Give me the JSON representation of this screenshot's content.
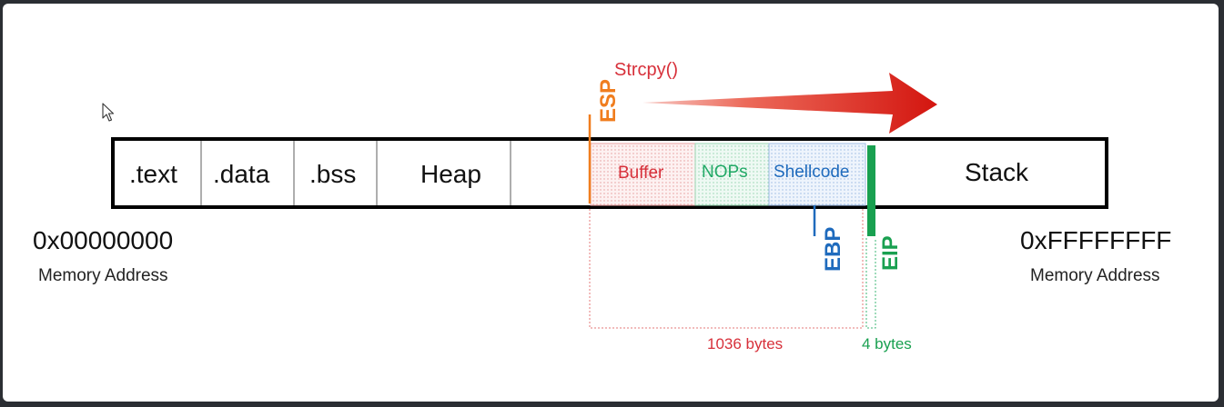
{
  "segments": {
    "text": ".text",
    "data": ".data",
    "bss": ".bss",
    "heap": "Heap",
    "stack": "Stack"
  },
  "stack_parts": {
    "buffer": "Buffer",
    "nops": "NOPs",
    "shellcode": "Shellcode"
  },
  "registers": {
    "esp": "ESP",
    "ebp": "EBP",
    "eip": "EIP"
  },
  "function_call": "Strcpy()",
  "addresses": {
    "low": "0x00000000",
    "low_label": "Memory Address",
    "high": "0xFFFFFFFF",
    "high_label": "Memory Address"
  },
  "sizes": {
    "buffer_bytes": "1036 bytes",
    "eip_bytes": "4 bytes"
  },
  "colors": {
    "esp": "#f07d1e",
    "buffer": "#d7303a",
    "nops": "#21a966",
    "shellcode": "#1f6bbd",
    "eip": "#19a050",
    "arrow": "#d91f1f"
  }
}
